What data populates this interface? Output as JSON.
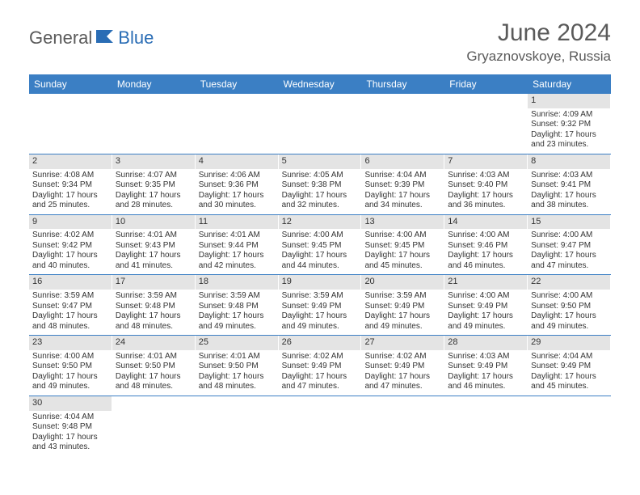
{
  "brand": {
    "part1": "General",
    "part2": "Blue"
  },
  "title": "June 2024",
  "location": "Gryaznovskoye, Russia",
  "colors": {
    "header_bg": "#3b7fc4",
    "daynum_bg": "#e4e4e4",
    "text": "#333333",
    "brand_gray": "#5a5a5a",
    "brand_blue": "#2a6db5",
    "row_border": "#3b7fc4"
  },
  "weekdays": [
    "Sunday",
    "Monday",
    "Tuesday",
    "Wednesday",
    "Thursday",
    "Friday",
    "Saturday"
  ],
  "weeks": [
    [
      null,
      null,
      null,
      null,
      null,
      null,
      {
        "n": "1",
        "sunrise": "4:09 AM",
        "sunset": "9:32 PM",
        "dl1": "Daylight: 17 hours",
        "dl2": "and 23 minutes."
      }
    ],
    [
      {
        "n": "2",
        "sunrise": "4:08 AM",
        "sunset": "9:34 PM",
        "dl1": "Daylight: 17 hours",
        "dl2": "and 25 minutes."
      },
      {
        "n": "3",
        "sunrise": "4:07 AM",
        "sunset": "9:35 PM",
        "dl1": "Daylight: 17 hours",
        "dl2": "and 28 minutes."
      },
      {
        "n": "4",
        "sunrise": "4:06 AM",
        "sunset": "9:36 PM",
        "dl1": "Daylight: 17 hours",
        "dl2": "and 30 minutes."
      },
      {
        "n": "5",
        "sunrise": "4:05 AM",
        "sunset": "9:38 PM",
        "dl1": "Daylight: 17 hours",
        "dl2": "and 32 minutes."
      },
      {
        "n": "6",
        "sunrise": "4:04 AM",
        "sunset": "9:39 PM",
        "dl1": "Daylight: 17 hours",
        "dl2": "and 34 minutes."
      },
      {
        "n": "7",
        "sunrise": "4:03 AM",
        "sunset": "9:40 PM",
        "dl1": "Daylight: 17 hours",
        "dl2": "and 36 minutes."
      },
      {
        "n": "8",
        "sunrise": "4:03 AM",
        "sunset": "9:41 PM",
        "dl1": "Daylight: 17 hours",
        "dl2": "and 38 minutes."
      }
    ],
    [
      {
        "n": "9",
        "sunrise": "4:02 AM",
        "sunset": "9:42 PM",
        "dl1": "Daylight: 17 hours",
        "dl2": "and 40 minutes."
      },
      {
        "n": "10",
        "sunrise": "4:01 AM",
        "sunset": "9:43 PM",
        "dl1": "Daylight: 17 hours",
        "dl2": "and 41 minutes."
      },
      {
        "n": "11",
        "sunrise": "4:01 AM",
        "sunset": "9:44 PM",
        "dl1": "Daylight: 17 hours",
        "dl2": "and 42 minutes."
      },
      {
        "n": "12",
        "sunrise": "4:00 AM",
        "sunset": "9:45 PM",
        "dl1": "Daylight: 17 hours",
        "dl2": "and 44 minutes."
      },
      {
        "n": "13",
        "sunrise": "4:00 AM",
        "sunset": "9:45 PM",
        "dl1": "Daylight: 17 hours",
        "dl2": "and 45 minutes."
      },
      {
        "n": "14",
        "sunrise": "4:00 AM",
        "sunset": "9:46 PM",
        "dl1": "Daylight: 17 hours",
        "dl2": "and 46 minutes."
      },
      {
        "n": "15",
        "sunrise": "4:00 AM",
        "sunset": "9:47 PM",
        "dl1": "Daylight: 17 hours",
        "dl2": "and 47 minutes."
      }
    ],
    [
      {
        "n": "16",
        "sunrise": "3:59 AM",
        "sunset": "9:47 PM",
        "dl1": "Daylight: 17 hours",
        "dl2": "and 48 minutes."
      },
      {
        "n": "17",
        "sunrise": "3:59 AM",
        "sunset": "9:48 PM",
        "dl1": "Daylight: 17 hours",
        "dl2": "and 48 minutes."
      },
      {
        "n": "18",
        "sunrise": "3:59 AM",
        "sunset": "9:48 PM",
        "dl1": "Daylight: 17 hours",
        "dl2": "and 49 minutes."
      },
      {
        "n": "19",
        "sunrise": "3:59 AM",
        "sunset": "9:49 PM",
        "dl1": "Daylight: 17 hours",
        "dl2": "and 49 minutes."
      },
      {
        "n": "20",
        "sunrise": "3:59 AM",
        "sunset": "9:49 PM",
        "dl1": "Daylight: 17 hours",
        "dl2": "and 49 minutes."
      },
      {
        "n": "21",
        "sunrise": "4:00 AM",
        "sunset": "9:49 PM",
        "dl1": "Daylight: 17 hours",
        "dl2": "and 49 minutes."
      },
      {
        "n": "22",
        "sunrise": "4:00 AM",
        "sunset": "9:50 PM",
        "dl1": "Daylight: 17 hours",
        "dl2": "and 49 minutes."
      }
    ],
    [
      {
        "n": "23",
        "sunrise": "4:00 AM",
        "sunset": "9:50 PM",
        "dl1": "Daylight: 17 hours",
        "dl2": "and 49 minutes."
      },
      {
        "n": "24",
        "sunrise": "4:01 AM",
        "sunset": "9:50 PM",
        "dl1": "Daylight: 17 hours",
        "dl2": "and 48 minutes."
      },
      {
        "n": "25",
        "sunrise": "4:01 AM",
        "sunset": "9:50 PM",
        "dl1": "Daylight: 17 hours",
        "dl2": "and 48 minutes."
      },
      {
        "n": "26",
        "sunrise": "4:02 AM",
        "sunset": "9:49 PM",
        "dl1": "Daylight: 17 hours",
        "dl2": "and 47 minutes."
      },
      {
        "n": "27",
        "sunrise": "4:02 AM",
        "sunset": "9:49 PM",
        "dl1": "Daylight: 17 hours",
        "dl2": "and 47 minutes."
      },
      {
        "n": "28",
        "sunrise": "4:03 AM",
        "sunset": "9:49 PM",
        "dl1": "Daylight: 17 hours",
        "dl2": "and 46 minutes."
      },
      {
        "n": "29",
        "sunrise": "4:04 AM",
        "sunset": "9:49 PM",
        "dl1": "Daylight: 17 hours",
        "dl2": "and 45 minutes."
      }
    ],
    [
      {
        "n": "30",
        "sunrise": "4:04 AM",
        "sunset": "9:48 PM",
        "dl1": "Daylight: 17 hours",
        "dl2": "and 43 minutes."
      },
      null,
      null,
      null,
      null,
      null,
      null
    ]
  ],
  "labels": {
    "sunrise": "Sunrise: ",
    "sunset": "Sunset: "
  }
}
